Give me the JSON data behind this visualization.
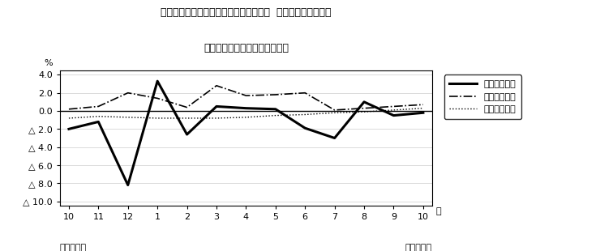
{
  "title_line1": "第４図　賃金、労働時間、常用雇用指数  対前年同月比の推移",
  "title_line2": "（規模５人以上　調査産業計）",
  "xlabel_months": [
    "10",
    "11",
    "12",
    "1",
    "2",
    "3",
    "4",
    "5",
    "6",
    "7",
    "8",
    "9",
    "10"
  ],
  "xlabel_bottom_left": "平成２１年",
  "xlabel_bottom_right": "平成２２年",
  "xlabel_month_label": "月",
  "ylabel_label": "%",
  "ylim": [
    -10.5,
    4.5
  ],
  "yticks": [
    4.0,
    2.0,
    0.0,
    -2.0,
    -4.0,
    -6.0,
    -8.0,
    -10.0
  ],
  "ytick_labels": [
    "4.0",
    "2.0",
    "0.0",
    "△ 2.0",
    "△ 4.0",
    "△ 6.0",
    "△ 8.0",
    "△ 10.0"
  ],
  "series_cash": [
    -2.0,
    -1.2,
    -8.2,
    3.3,
    -2.6,
    0.5,
    0.3,
    0.2,
    -1.9,
    -3.0,
    1.0,
    -0.5,
    -0.2
  ],
  "series_hours": [
    0.2,
    0.5,
    2.0,
    1.4,
    0.4,
    2.8,
    1.7,
    1.8,
    2.0,
    0.1,
    0.3,
    0.5,
    0.7
  ],
  "series_employment": [
    -0.8,
    -0.6,
    -0.7,
    -0.8,
    -0.8,
    -0.8,
    -0.7,
    -0.5,
    -0.4,
    -0.2,
    -0.1,
    0.1,
    0.3
  ],
  "legend_labels": [
    "現金給与総額",
    "総実労働時間",
    "常用雇用指数"
  ],
  "color_cash": "#000000",
  "color_hours": "#000000",
  "color_employment": "#000000",
  "background_color": "#ffffff",
  "figsize": [
    7.4,
    3.1
  ],
  "dpi": 100
}
